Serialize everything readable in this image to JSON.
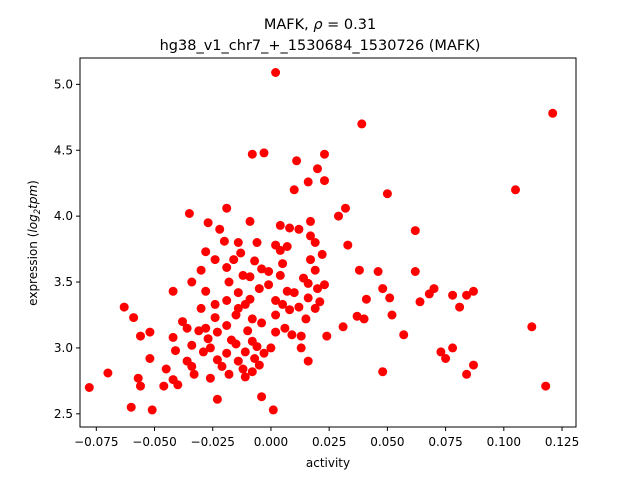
{
  "chart_data": {
    "type": "scatter",
    "title_line1_prefix": "MAFK, ",
    "title_rho_symbol": "ρ",
    "title_rho_value": " = 0.31",
    "title_line2": "hg38_v1_chr7_+_1530684_1530726 (MAFK)",
    "xlabel": "activity",
    "ylabel_prefix": "expression (",
    "ylabel_log": "log",
    "ylabel_sub": "2",
    "ylabel_tpm": "tpm",
    "ylabel_suffix": ")",
    "xlim": [
      -0.082,
      0.131
    ],
    "ylim": [
      2.4,
      5.2
    ],
    "xticks": [
      -0.075,
      -0.05,
      -0.025,
      0.0,
      0.025,
      0.05,
      0.075,
      0.1,
      0.125
    ],
    "xtick_labels": [
      "−0.075",
      "−0.050",
      "−0.025",
      "0.000",
      "0.025",
      "0.050",
      "0.075",
      "0.100",
      "0.125"
    ],
    "yticks": [
      2.5,
      3.0,
      3.5,
      4.0,
      4.5,
      5.0
    ],
    "ytick_labels": [
      "2.5",
      "3.0",
      "3.5",
      "4.0",
      "4.5",
      "5.0"
    ],
    "grid": false,
    "point_color": "#ff0000",
    "points": [
      [
        0.002,
        5.09
      ],
      [
        0.121,
        4.78
      ],
      [
        0.039,
        4.7
      ],
      [
        0.011,
        4.42
      ],
      [
        -0.008,
        4.47
      ],
      [
        -0.003,
        4.48
      ],
      [
        0.023,
        4.47
      ],
      [
        0.02,
        4.36
      ],
      [
        0.016,
        4.26
      ],
      [
        0.01,
        4.2
      ],
      [
        0.023,
        4.27
      ],
      [
        0.105,
        4.2
      ],
      [
        0.05,
        4.17
      ],
      [
        -0.035,
        4.02
      ],
      [
        -0.019,
        4.06
      ],
      [
        0.029,
        4.0
      ],
      [
        0.032,
        4.06
      ],
      [
        0.017,
        3.96
      ],
      [
        0.004,
        3.93
      ],
      [
        -0.027,
        3.95
      ],
      [
        -0.009,
        3.96
      ],
      [
        -0.022,
        3.9
      ],
      [
        0.008,
        3.91
      ],
      [
        0.012,
        3.9
      ],
      [
        0.062,
        3.89
      ],
      [
        0.017,
        3.85
      ],
      [
        -0.02,
        3.81
      ],
      [
        -0.014,
        3.8
      ],
      [
        -0.006,
        3.8
      ],
      [
        0.002,
        3.78
      ],
      [
        0.007,
        3.77
      ],
      [
        0.019,
        3.8
      ],
      [
        0.033,
        3.78
      ],
      [
        -0.028,
        3.73
      ],
      [
        -0.013,
        3.72
      ],
      [
        0.004,
        3.74
      ],
      [
        0.022,
        3.71
      ],
      [
        -0.024,
        3.67
      ],
      [
        -0.016,
        3.67
      ],
      [
        -0.007,
        3.66
      ],
      [
        0.005,
        3.64
      ],
      [
        0.017,
        3.67
      ],
      [
        -0.03,
        3.59
      ],
      [
        -0.019,
        3.61
      ],
      [
        -0.004,
        3.6
      ],
      [
        -0.001,
        3.58
      ],
      [
        0.019,
        3.59
      ],
      [
        0.038,
        3.59
      ],
      [
        0.046,
        3.58
      ],
      [
        0.062,
        3.58
      ],
      [
        -0.012,
        3.55
      ],
      [
        -0.009,
        3.54
      ],
      [
        0.004,
        3.55
      ],
      [
        0.014,
        3.53
      ],
      [
        -0.034,
        3.5
      ],
      [
        -0.018,
        3.5
      ],
      [
        -0.001,
        3.48
      ],
      [
        0.016,
        3.49
      ],
      [
        0.023,
        3.48
      ],
      [
        0.048,
        3.45
      ],
      [
        0.07,
        3.45
      ],
      [
        -0.042,
        3.43
      ],
      [
        -0.028,
        3.43
      ],
      [
        -0.014,
        3.42
      ],
      [
        -0.005,
        3.45
      ],
      [
        0.007,
        3.43
      ],
      [
        0.01,
        3.42
      ],
      [
        0.02,
        3.45
      ],
      [
        0.041,
        3.37
      ],
      [
        0.064,
        3.35
      ],
      [
        0.068,
        3.41
      ],
      [
        0.078,
        3.4
      ],
      [
        0.084,
        3.4
      ],
      [
        0.087,
        3.43
      ],
      [
        -0.019,
        3.36
      ],
      [
        -0.009,
        3.37
      ],
      [
        0.002,
        3.36
      ],
      [
        0.016,
        3.38
      ],
      [
        0.021,
        3.35
      ],
      [
        -0.024,
        3.33
      ],
      [
        -0.011,
        3.33
      ],
      [
        0.005,
        3.33
      ],
      [
        0.012,
        3.31
      ],
      [
        0.051,
        3.38
      ],
      [
        -0.063,
        3.31
      ],
      [
        -0.03,
        3.3
      ],
      [
        -0.014,
        3.3
      ],
      [
        0.008,
        3.29
      ],
      [
        0.019,
        3.3
      ],
      [
        0.081,
        3.31
      ],
      [
        -0.059,
        3.23
      ],
      [
        -0.038,
        3.2
      ],
      [
        -0.024,
        3.23
      ],
      [
        -0.015,
        3.25
      ],
      [
        -0.008,
        3.22
      ],
      [
        0.002,
        3.25
      ],
      [
        0.015,
        3.22
      ],
      [
        0.037,
        3.24
      ],
      [
        0.04,
        3.22
      ],
      [
        0.052,
        3.25
      ],
      [
        -0.028,
        3.15
      ],
      [
        -0.019,
        3.17
      ],
      [
        -0.004,
        3.19
      ],
      [
        0.006,
        3.15
      ],
      [
        0.031,
        3.16
      ],
      [
        0.112,
        3.16
      ],
      [
        -0.052,
        3.12
      ],
      [
        -0.036,
        3.15
      ],
      [
        -0.031,
        3.13
      ],
      [
        -0.023,
        3.12
      ],
      [
        -0.01,
        3.13
      ],
      [
        0.002,
        3.12
      ],
      [
        0.009,
        3.1
      ],
      [
        0.024,
        3.09
      ],
      [
        -0.056,
        3.09
      ],
      [
        -0.042,
        3.08
      ],
      [
        -0.027,
        3.07
      ],
      [
        -0.017,
        3.06
      ],
      [
        -0.008,
        3.05
      ],
      [
        0.013,
        3.09
      ],
      [
        0.057,
        3.1
      ],
      [
        -0.034,
        3.02
      ],
      [
        -0.026,
        3.0
      ],
      [
        -0.015,
        3.03
      ],
      [
        -0.006,
        3.01
      ],
      [
        0.0,
        3.0
      ],
      [
        0.013,
        3.0
      ],
      [
        0.078,
        3.0
      ],
      [
        -0.041,
        2.98
      ],
      [
        -0.029,
        2.97
      ],
      [
        -0.019,
        2.96
      ],
      [
        -0.011,
        2.97
      ],
      [
        -0.003,
        2.96
      ],
      [
        0.073,
        2.97
      ],
      [
        -0.052,
        2.92
      ],
      [
        -0.036,
        2.9
      ],
      [
        -0.023,
        2.91
      ],
      [
        -0.014,
        2.9
      ],
      [
        -0.007,
        2.92
      ],
      [
        0.016,
        2.9
      ],
      [
        0.075,
        2.92
      ],
      [
        -0.034,
        2.86
      ],
      [
        -0.021,
        2.86
      ],
      [
        -0.012,
        2.84
      ],
      [
        -0.005,
        2.87
      ],
      [
        0.087,
        2.87
      ],
      [
        -0.07,
        2.81
      ],
      [
        -0.045,
        2.84
      ],
      [
        -0.033,
        2.8
      ],
      [
        -0.018,
        2.8
      ],
      [
        -0.008,
        2.82
      ],
      [
        0.048,
        2.82
      ],
      [
        0.084,
        2.8
      ],
      [
        -0.057,
        2.77
      ],
      [
        -0.042,
        2.76
      ],
      [
        -0.026,
        2.77
      ],
      [
        -0.011,
        2.78
      ],
      [
        -0.078,
        2.7
      ],
      [
        -0.056,
        2.71
      ],
      [
        -0.046,
        2.71
      ],
      [
        -0.04,
        2.72
      ],
      [
        0.118,
        2.71
      ],
      [
        -0.023,
        2.61
      ],
      [
        -0.004,
        2.63
      ],
      [
        -0.06,
        2.55
      ],
      [
        -0.051,
        2.53
      ],
      [
        0.001,
        2.53
      ]
    ]
  }
}
